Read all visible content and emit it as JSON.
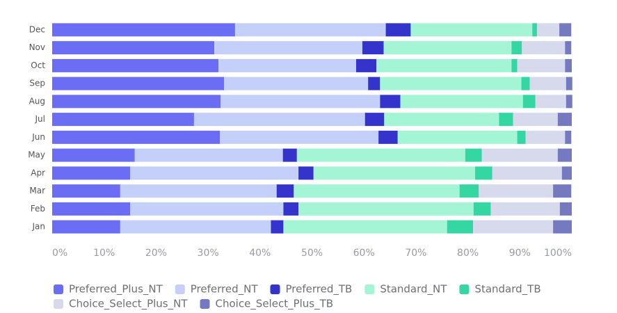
{
  "chart_data": {
    "type": "bar",
    "orientation": "horizontal",
    "stacked": true,
    "categories": [
      "Dec",
      "Nov",
      "Oct",
      "Sep",
      "Aug",
      "Jul",
      "Jun",
      "May",
      "Apr",
      "Mar",
      "Feb",
      "Jan"
    ],
    "series": [
      {
        "name": "Preferred_Plus_NT",
        "color": "#6b6ef5",
        "values": [
          35.2,
          31.2,
          32.0,
          33.1,
          32.4,
          27.3,
          32.3,
          15.9,
          15.0,
          13.1,
          15.0,
          13.1
        ]
      },
      {
        "name": "Preferred_NT",
        "color": "#c5d0fa",
        "values": [
          29.0,
          28.5,
          26.5,
          27.7,
          30.7,
          32.9,
          30.5,
          28.5,
          32.4,
          30.1,
          29.5,
          29.0
        ]
      },
      {
        "name": "Preferred_TB",
        "color": "#3434cc",
        "values": [
          4.8,
          4.1,
          3.9,
          2.3,
          3.9,
          3.7,
          3.7,
          2.7,
          2.9,
          3.3,
          2.9,
          2.4
        ]
      },
      {
        "name": "Standard_NT",
        "color": "#a4f5d6",
        "values": [
          23.4,
          24.6,
          26.0,
          27.2,
          23.6,
          22.1,
          23.0,
          32.4,
          31.1,
          31.9,
          33.7,
          31.5
        ]
      },
      {
        "name": "Standard_TB",
        "color": "#34d6a2",
        "values": [
          0.9,
          2.0,
          1.1,
          1.6,
          2.4,
          2.7,
          1.6,
          3.2,
          3.3,
          3.7,
          3.3,
          5.0
        ]
      },
      {
        "name": "Choice_Select_Plus_NT",
        "color": "#d7d9ec",
        "values": [
          4.3,
          8.3,
          9.2,
          7.0,
          5.9,
          8.6,
          7.6,
          14.6,
          13.4,
          14.3,
          13.3,
          15.4
        ]
      },
      {
        "name": "Choice_Select_Plus_TB",
        "color": "#7479c0",
        "values": [
          2.3,
          1.2,
          1.3,
          1.2,
          1.2,
          2.7,
          1.2,
          2.7,
          1.9,
          3.5,
          2.3,
          3.6
        ]
      }
    ],
    "xlim": [
      0,
      100
    ],
    "xticks": [
      {
        "value": 0,
        "label": "0%"
      },
      {
        "value": 10,
        "label": "10%"
      },
      {
        "value": 20,
        "label": "20%"
      },
      {
        "value": 30,
        "label": "30%"
      },
      {
        "value": 40,
        "label": "40%"
      },
      {
        "value": 50,
        "label": "50%"
      },
      {
        "value": 60,
        "label": "60%"
      },
      {
        "value": 70,
        "label": "70%"
      },
      {
        "value": 80,
        "label": "80%"
      },
      {
        "value": 90,
        "label": "90%"
      },
      {
        "value": 100,
        "label": "100%"
      }
    ],
    "legend": "bottom"
  }
}
